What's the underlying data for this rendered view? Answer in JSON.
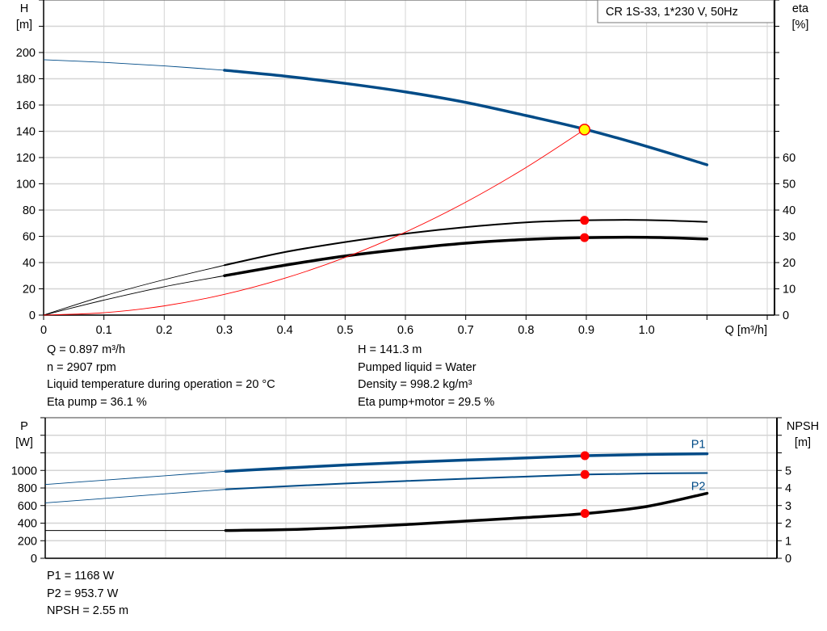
{
  "chart_data": [
    {
      "type": "line",
      "legend_box": "CR 1S-33, 1*230 V, 50Hz",
      "xlabel": "Q [m³/h]",
      "ylabel_left": [
        "H",
        "[m]"
      ],
      "ylabel_right": [
        "eta",
        "[%]"
      ],
      "xlim": [
        0,
        1.2
      ],
      "ylim_left": [
        0,
        240
      ],
      "ylim_right": [
        0,
        120
      ],
      "x_ticks": [
        "0",
        "0.1",
        "0.2",
        "0.3",
        "0.4",
        "0.5",
        "0.6",
        "0.7",
        "0.8",
        "0.9",
        "1.0"
      ],
      "y_ticks_left": [
        "0",
        "20",
        "40",
        "60",
        "80",
        "100",
        "120",
        "140",
        "160",
        "180",
        "200"
      ],
      "y_ticks_right": [
        "0",
        "10",
        "20",
        "30",
        "40",
        "50",
        "60"
      ],
      "grid": true,
      "series": [
        {
          "axis": "left",
          "color": "#004b87",
          "thick_from": 0.3,
          "x": [
            0,
            0.1,
            0.2,
            0.3,
            0.4,
            0.5,
            0.6,
            0.7,
            0.8,
            0.9,
            1.0,
            1.1
          ],
          "y": [
            194.5,
            192.5,
            189.8,
            186.5,
            182,
            176.5,
            170,
            162,
            152,
            141.3,
            128.5,
            114.5
          ]
        },
        {
          "axis": "right",
          "color": "#000000",
          "thick_from": 0.3,
          "width": 2,
          "x": [
            0,
            0.1,
            0.2,
            0.3,
            0.4,
            0.5,
            0.6,
            0.7,
            0.8,
            0.9,
            1.0,
            1.1
          ],
          "y": [
            0,
            7.3,
            13.5,
            19,
            24,
            27.8,
            31,
            33.5,
            35.3,
            36.1,
            36.2,
            35.5
          ]
        },
        {
          "axis": "right",
          "color": "#000000",
          "thick_from": 0.3,
          "width": 3.5,
          "x": [
            0,
            0.1,
            0.2,
            0.3,
            0.4,
            0.5,
            0.6,
            0.7,
            0.8,
            0.9,
            1.0,
            1.1
          ],
          "y": [
            0,
            5.7,
            10.8,
            15,
            19,
            22.5,
            25.2,
            27.4,
            28.8,
            29.5,
            29.6,
            29.0
          ]
        },
        {
          "axis": "left",
          "color": "#ff0000",
          "thin": true,
          "x": [
            0,
            0.1,
            0.2,
            0.3,
            0.4,
            0.5,
            0.6,
            0.7,
            0.8,
            0.897
          ],
          "y": [
            0,
            1.8,
            7,
            15.8,
            28.1,
            43.9,
            63.2,
            86,
            112.4,
            141.3
          ]
        }
      ],
      "markers": [
        {
          "axis": "left",
          "x": 0.897,
          "y": 141.3,
          "fill": "#ffff00",
          "stroke": "#ff0000"
        },
        {
          "axis": "right",
          "x": 0.897,
          "y": 36.1,
          "fill": "#ff0000"
        },
        {
          "axis": "right",
          "x": 0.897,
          "y": 29.5,
          "fill": "#ff0000"
        }
      ]
    },
    {
      "type": "line",
      "ylabel_left": [
        "P",
        "[W]"
      ],
      "ylabel_right": [
        "NPSH",
        "[m]"
      ],
      "xlim": [
        0,
        1.2
      ],
      "ylim_left": [
        0,
        1600
      ],
      "ylim_right": [
        0,
        8
      ],
      "y_ticks_left": [
        "0",
        "200",
        "400",
        "600",
        "800",
        "1000"
      ],
      "y_ticks_right": [
        "0",
        "1",
        "2",
        "3",
        "4",
        "5"
      ],
      "grid": true,
      "series": [
        {
          "name": "P1",
          "axis": "left",
          "color": "#004b87",
          "thick_from": 0.3,
          "width": 3.5,
          "x": [
            0,
            0.1,
            0.2,
            0.3,
            0.4,
            0.5,
            0.6,
            0.7,
            0.8,
            0.9,
            1.0,
            1.1
          ],
          "y": [
            840,
            890,
            940,
            990,
            1028,
            1062,
            1092,
            1118,
            1142,
            1168,
            1182,
            1190
          ]
        },
        {
          "name": "P2",
          "axis": "left",
          "color": "#004b87",
          "thick_from": 0.3,
          "width": 2,
          "x": [
            0,
            0.1,
            0.2,
            0.3,
            0.4,
            0.5,
            0.6,
            0.7,
            0.8,
            0.9,
            1.0,
            1.1
          ],
          "y": [
            630,
            682,
            734,
            785,
            820,
            852,
            880,
            906,
            930,
            953.7,
            965,
            970
          ]
        },
        {
          "axis": "right",
          "color": "#000000",
          "thick_from": 0.3,
          "width": 3.5,
          "x": [
            0,
            0.1,
            0.2,
            0.3,
            0.4,
            0.5,
            0.6,
            0.7,
            0.8,
            0.9,
            1.0,
            1.1
          ],
          "y": [
            1.58,
            1.58,
            1.58,
            1.58,
            1.63,
            1.75,
            1.92,
            2.12,
            2.32,
            2.55,
            2.95,
            3.7
          ]
        }
      ],
      "markers": [
        {
          "axis": "left",
          "x": 0.897,
          "y": 1168,
          "fill": "#ff0000"
        },
        {
          "axis": "left",
          "x": 0.897,
          "y": 953.7,
          "fill": "#ff0000"
        },
        {
          "axis": "right",
          "x": 0.897,
          "y": 2.55,
          "fill": "#ff0000"
        }
      ]
    }
  ],
  "info_top_left": [
    "Q = 0.897 m³/h",
    "n = 2907 rpm",
    "Liquid temperature during operation = 20 °C",
    "Eta pump = 36.1 %"
  ],
  "info_top_right": [
    "H = 141.3 m",
    "Pumped liquid = Water",
    "Density = 998.2 kg/m³",
    "Eta pump+motor = 29.5 %"
  ],
  "info_bottom": [
    "P1 = 1168 W",
    "P2 = 953.7 W",
    "NPSH = 2.55 m"
  ]
}
